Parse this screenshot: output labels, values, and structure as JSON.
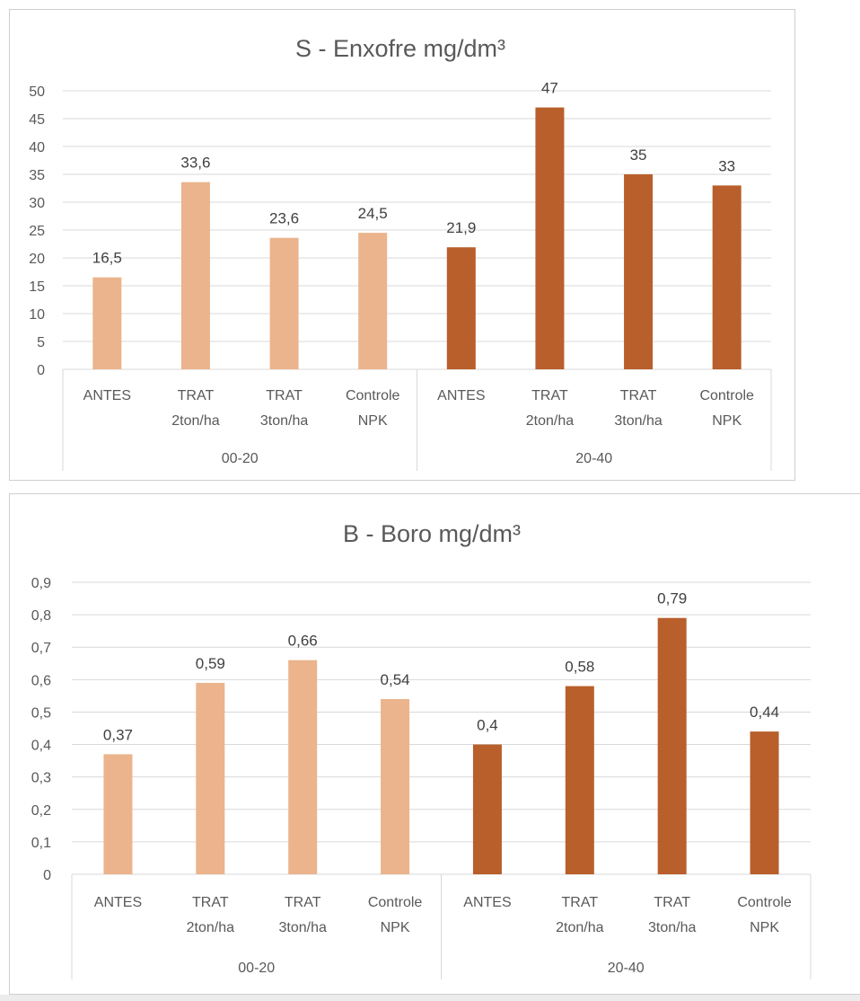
{
  "chart_data": [
    {
      "type": "bar",
      "title": "S - Enxofre mg/dm³",
      "ylim": [
        0,
        50
      ],
      "yticks": [
        0,
        5,
        10,
        15,
        20,
        25,
        30,
        35,
        40,
        45,
        50
      ],
      "ytick_labels": [
        "0",
        "5",
        "10",
        "15",
        "20",
        "25",
        "30",
        "35",
        "40",
        "45",
        "50"
      ],
      "grid": true,
      "groups": [
        {
          "label": "00-20",
          "color": "#EBB48C",
          "bars": [
            {
              "category": [
                "ANTES"
              ],
              "value": 16.5,
              "label": "16,5"
            },
            {
              "category": [
                "TRAT",
                "2ton/ha"
              ],
              "value": 33.6,
              "label": "33,6"
            },
            {
              "category": [
                "TRAT",
                "3ton/ha"
              ],
              "value": 23.6,
              "label": "23,6"
            },
            {
              "category": [
                "Controle",
                "NPK"
              ],
              "value": 24.5,
              "label": "24,5"
            }
          ]
        },
        {
          "label": "20-40",
          "color": "#B85F2B",
          "bars": [
            {
              "category": [
                "ANTES"
              ],
              "value": 21.9,
              "label": "21,9"
            },
            {
              "category": [
                "TRAT",
                "2ton/ha"
              ],
              "value": 47,
              "label": "47"
            },
            {
              "category": [
                "TRAT",
                "3ton/ha"
              ],
              "value": 35,
              "label": "35"
            },
            {
              "category": [
                "Controle",
                "NPK"
              ],
              "value": 33,
              "label": "33"
            }
          ]
        }
      ]
    },
    {
      "type": "bar",
      "title": "B - Boro mg/dm³",
      "ylim": [
        0,
        0.9
      ],
      "yticks": [
        0,
        0.1,
        0.2,
        0.3,
        0.4,
        0.5,
        0.6,
        0.7,
        0.8,
        0.9
      ],
      "ytick_labels": [
        "0",
        "0,1",
        "0,2",
        "0,3",
        "0,4",
        "0,5",
        "0,6",
        "0,7",
        "0,8",
        "0,9"
      ],
      "grid": true,
      "groups": [
        {
          "label": "00-20",
          "color": "#EBB48C",
          "bars": [
            {
              "category": [
                "ANTES"
              ],
              "value": 0.37,
              "label": "0,37"
            },
            {
              "category": [
                "TRAT",
                "2ton/ha"
              ],
              "value": 0.59,
              "label": "0,59"
            },
            {
              "category": [
                "TRAT",
                "3ton/ha"
              ],
              "value": 0.66,
              "label": "0,66"
            },
            {
              "category": [
                "Controle",
                "NPK"
              ],
              "value": 0.54,
              "label": "0,54"
            }
          ]
        },
        {
          "label": "20-40",
          "color": "#B85F2B",
          "bars": [
            {
              "category": [
                "ANTES"
              ],
              "value": 0.4,
              "label": "0,4"
            },
            {
              "category": [
                "TRAT",
                "2ton/ha"
              ],
              "value": 0.58,
              "label": "0,58"
            },
            {
              "category": [
                "TRAT",
                "3ton/ha"
              ],
              "value": 0.79,
              "label": "0,79"
            },
            {
              "category": [
                "Controle",
                "NPK"
              ],
              "value": 0.44,
              "label": "0,44"
            }
          ]
        }
      ]
    }
  ]
}
